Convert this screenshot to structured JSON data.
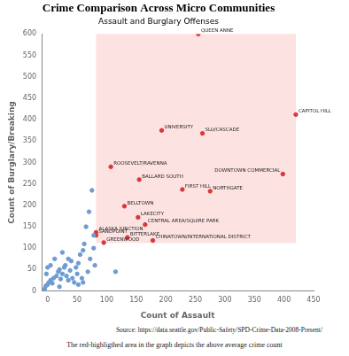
{
  "chart_data": {
    "type": "scatter",
    "title": "Crime Comparison Across Micro Communities",
    "subtitle": "Assault and Burglary Offenses",
    "x_label": "Count of Assault",
    "y_label": "Count of Burglary/Breaking",
    "source": "Source: https://data.seattle.gov/Public-Safety/SPD-Crime-Data-2008-Present/",
    "note": "The red-highligthed area in the graph depicts the above average crime count",
    "xlim": [
      -10,
      450
    ],
    "ylim": [
      0,
      600
    ],
    "xticks": [
      0,
      50,
      100,
      150,
      200,
      250,
      300,
      350,
      400,
      450
    ],
    "yticks": [
      0,
      50,
      100,
      150,
      200,
      250,
      300,
      350,
      400,
      450,
      500,
      550,
      600
    ],
    "grid": false,
    "region": {
      "x": [
        82,
        420
      ],
      "y": [
        112,
        600
      ],
      "color": "#fde2e2"
    },
    "series": [
      {
        "color": "#6f9bd1",
        "marker": "circle",
        "x": [
          -5,
          -3,
          0,
          2,
          5,
          8,
          10,
          0,
          5,
          -2,
          15,
          18,
          20,
          22,
          25,
          28,
          30,
          32,
          35,
          38,
          40,
          42,
          45,
          48,
          50,
          52,
          55,
          58,
          60,
          62,
          65,
          70,
          72,
          75,
          78,
          80,
          78,
          68,
          52,
          115,
          12,
          25,
          20,
          35,
          60
        ],
        "y": [
          5,
          12,
          15,
          20,
          25,
          18,
          30,
          55,
          60,
          40,
          35,
          45,
          50,
          28,
          40,
          55,
          60,
          35,
          25,
          48,
          70,
          30,
          20,
          55,
          40,
          65,
          85,
          30,
          95,
          110,
          150,
          185,
          75,
          235,
          130,
          60,
          100,
          45,
          15,
          45,
          75,
          90,
          10,
          75,
          20
        ]
      },
      {
        "color": "#d9383a",
        "marker": "circle",
        "labels": [
          "QUEEN ANNE",
          "CAPITOL HILL",
          "UNIVERSITY",
          "SLU/CASCADE",
          "DOWNTOWN COMMERCIAL",
          "ROOSEVELT/RAVENNA",
          "BALLARD SOUTH",
          "FIRST HILL",
          "NORTHGATE",
          "BELLTOWN",
          "LAKECITY",
          "CENTRAL AREA/SQUIRE PARK",
          "ALASKA JUNCTION",
          "SANDPOINT",
          "BITTERLAKE",
          "GREENWOOD",
          "CHINATOWN/INTERNATIONAL DISTRICT"
        ],
        "x": [
          255,
          420,
          193,
          262,
          398,
          107,
          155,
          228,
          275,
          130,
          153,
          165,
          82,
          82,
          135,
          95,
          178
        ],
        "y": [
          600,
          412,
          375,
          368,
          273,
          290,
          260,
          237,
          233,
          198,
          172,
          155,
          137,
          130,
          125,
          113,
          118
        ]
      }
    ]
  }
}
